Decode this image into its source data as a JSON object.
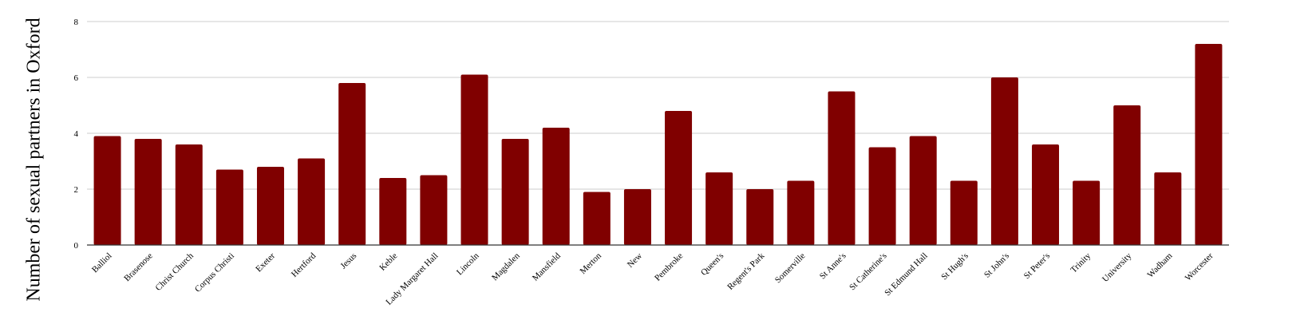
{
  "chart_data": {
    "type": "bar",
    "title": "",
    "xlabel": "",
    "ylabel": "Number of sexual partners in Oxford",
    "ylim": [
      0,
      8
    ],
    "yticks": [
      "0",
      "2",
      "4",
      "6",
      "8"
    ],
    "grid": true,
    "bar_color": "#800000",
    "categories": [
      "Balliol",
      "Brasenose",
      "Christ Church",
      "Corpus Christi",
      "Exeter",
      "Hertford",
      "Jesus",
      "Keble",
      "Lady Margaret Hall",
      "Lincoln",
      "Magdalen",
      "Mansfield",
      "Merton",
      "New",
      "Pembroke",
      "Queen's",
      "Regent's Park",
      "Somerville",
      "St Anne's",
      "St Catherine's",
      "St Edmund Hall",
      "St Hugh's",
      "St John's",
      "St Peter's",
      "Trinity",
      "University",
      "Wadham",
      "Worcester"
    ],
    "values": [
      3.9,
      3.8,
      3.6,
      2.7,
      2.8,
      3.1,
      5.8,
      2.4,
      2.5,
      6.1,
      3.8,
      4.2,
      1.9,
      2.0,
      4.8,
      2.6,
      2.0,
      2.3,
      5.5,
      3.5,
      3.9,
      2.3,
      6.0,
      3.6,
      2.3,
      5.0,
      2.6,
      7.2
    ]
  }
}
